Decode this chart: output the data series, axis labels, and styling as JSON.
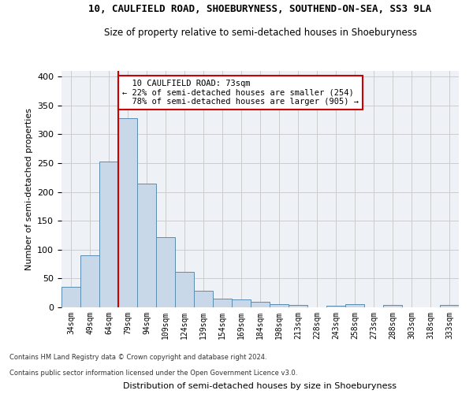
{
  "title": "10, CAULFIELD ROAD, SHOEBURYNESS, SOUTHEND-ON-SEA, SS3 9LA",
  "subtitle": "Size of property relative to semi-detached houses in Shoeburyness",
  "xlabel": "Distribution of semi-detached houses by size in Shoeburyness",
  "ylabel": "Number of semi-detached properties",
  "footer1": "Contains HM Land Registry data © Crown copyright and database right 2024.",
  "footer2": "Contains public sector information licensed under the Open Government Licence v3.0.",
  "categories": [
    "34sqm",
    "49sqm",
    "64sqm",
    "79sqm",
    "94sqm",
    "109sqm",
    "124sqm",
    "139sqm",
    "154sqm",
    "169sqm",
    "184sqm",
    "198sqm",
    "213sqm",
    "228sqm",
    "243sqm",
    "258sqm",
    "273sqm",
    "288sqm",
    "303sqm",
    "318sqm",
    "333sqm"
  ],
  "values": [
    35,
    90,
    253,
    328,
    215,
    121,
    62,
    29,
    15,
    13,
    10,
    5,
    4,
    0,
    3,
    5,
    0,
    4,
    0,
    0,
    4
  ],
  "bar_color": "#c8d8e8",
  "bar_edge_color": "#5b8db0",
  "property_label": "10 CAULFIELD ROAD: 73sqm",
  "pct_smaller": 22,
  "pct_larger": 78,
  "count_smaller": 254,
  "count_larger": 905,
  "vline_x": 2.5,
  "annotation_box_color": "#cc0000",
  "ylim": [
    0,
    410
  ],
  "yticks": [
    0,
    50,
    100,
    150,
    200,
    250,
    300,
    350,
    400
  ],
  "grid_color": "#cccccc",
  "bg_color": "#eef2f7"
}
